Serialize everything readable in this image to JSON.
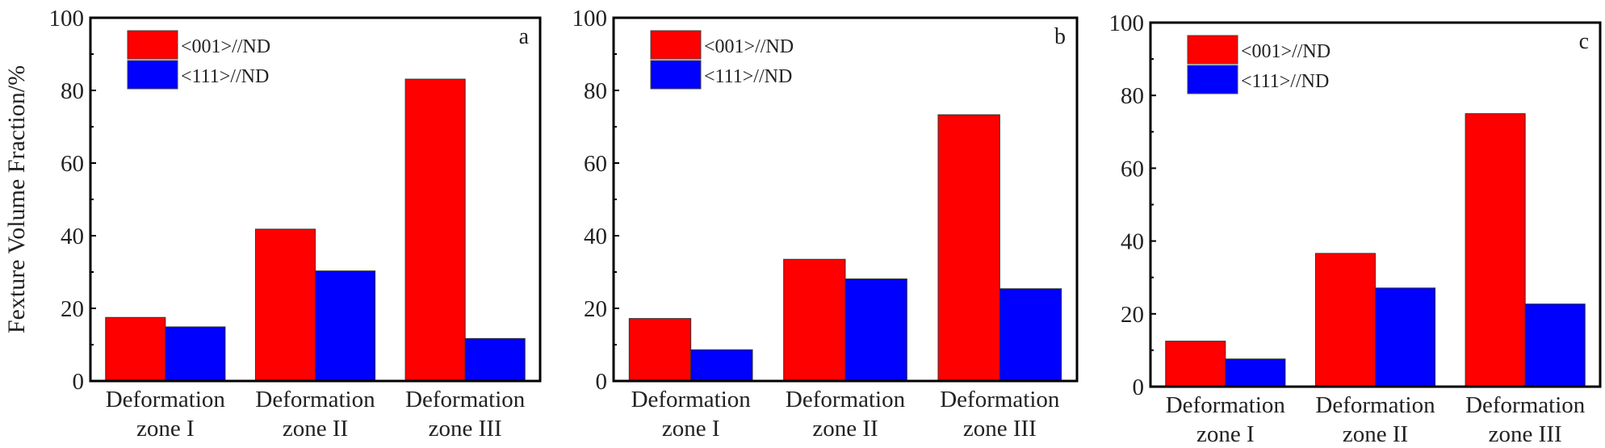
{
  "chart_data": [
    {
      "type": "bar",
      "panel_label": "a",
      "ylabel": "Fexture Volume Fraction/%",
      "ylim": [
        0,
        100
      ],
      "yticks": [
        "0",
        "20",
        "40",
        "60",
        "80",
        "100"
      ],
      "categories": [
        [
          "Deformation",
          "zone I"
        ],
        [
          "Deformation",
          "zone II"
        ],
        [
          "Deformation",
          "zone III"
        ]
      ],
      "series": [
        {
          "name": "<001>//ND",
          "color": "#ff0000",
          "values": [
            17.5,
            41.8,
            83.1
          ]
        },
        {
          "name": "<111>//ND",
          "color": "#0000ff",
          "values": [
            14.9,
            30.3,
            11.7
          ]
        }
      ],
      "legend": "top-left"
    },
    {
      "type": "bar",
      "panel_label": "b",
      "ylim": [
        0,
        100
      ],
      "yticks": [
        "0",
        "20",
        "40",
        "60",
        "80",
        "100"
      ],
      "categories": [
        [
          "Deformation",
          "zone I"
        ],
        [
          "Deformation",
          "zone II"
        ],
        [
          "Deformation",
          "zone III"
        ]
      ],
      "series": [
        {
          "name": "<001>//ND",
          "color": "#ff0000",
          "values": [
            17.2,
            33.5,
            73.3
          ]
        },
        {
          "name": "<111>//ND",
          "color": "#0000ff",
          "values": [
            8.6,
            28.1,
            25.4
          ]
        }
      ],
      "legend": "top-left"
    },
    {
      "type": "bar",
      "panel_label": "c",
      "ylim": [
        0,
        100
      ],
      "yticks": [
        "0",
        "20",
        "40",
        "60",
        "80",
        "100"
      ],
      "categories": [
        [
          "Deformation",
          "zone I"
        ],
        [
          "Deformation",
          "zone II"
        ],
        [
          "Deformation",
          "zone III"
        ]
      ],
      "series": [
        {
          "name": "<001>//ND",
          "color": "#ff0000",
          "values": [
            12.5,
            36.6,
            75.0
          ]
        },
        {
          "name": "<111>//ND",
          "color": "#0000ff",
          "values": [
            7.6,
            27.1,
            22.7
          ]
        }
      ],
      "legend": "top-left"
    }
  ]
}
